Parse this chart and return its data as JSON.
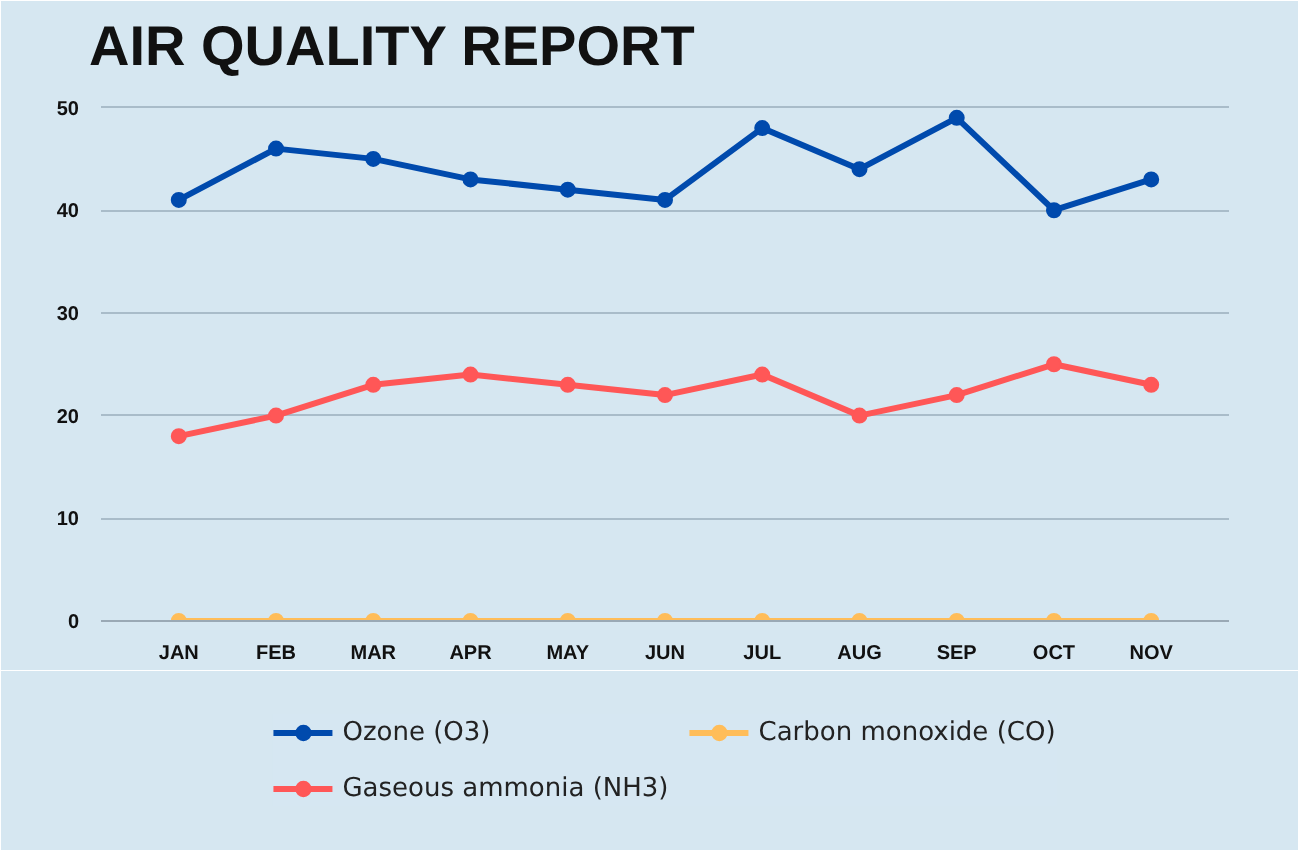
{
  "chart_data": {
    "type": "line",
    "title": "AIR QUALITY REPORT",
    "categories": [
      "JAN",
      "FEB",
      "MAR",
      "APR",
      "MAY",
      "JUN",
      "JUL",
      "AUG",
      "SEP",
      "OCT",
      "NOV"
    ],
    "series": [
      {
        "name": "Ozone (O3)",
        "color": "#004aad",
        "values": [
          41,
          46,
          45,
          43,
          42,
          41,
          48,
          44,
          49,
          40,
          43
        ]
      },
      {
        "name": "Gaseous ammonia (NH3)",
        "color": "#ff5757",
        "values": [
          18,
          20,
          23,
          24,
          23,
          22,
          24,
          20,
          22,
          25,
          23
        ]
      },
      {
        "name": "Carbon monoxide (CO)",
        "color": "#ffbd59",
        "values": [
          0,
          0,
          0,
          0,
          0,
          0,
          0,
          0,
          0,
          0,
          0
        ]
      }
    ],
    "ylim": [
      0,
      52
    ],
    "yticks": [
      0,
      10,
      20,
      30,
      40,
      50
    ],
    "grid": "y",
    "legend": "bottom",
    "marker": "circle",
    "line_style": "solid"
  }
}
